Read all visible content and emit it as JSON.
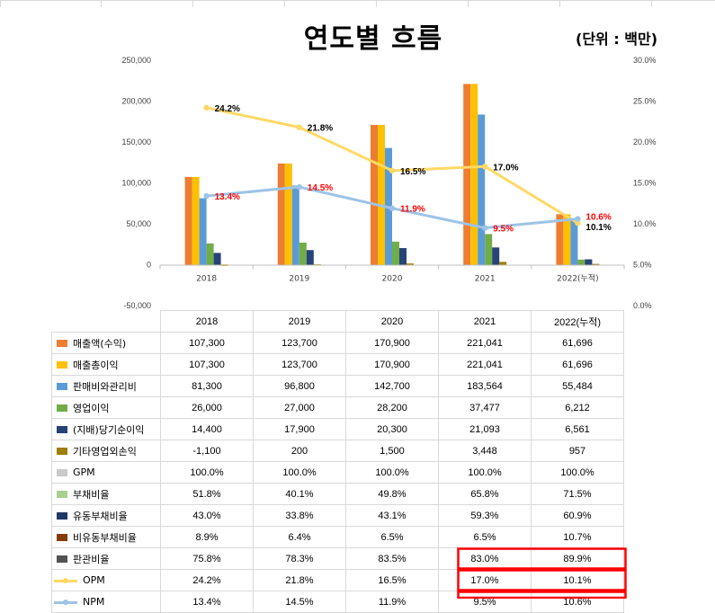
{
  "title": "연도별 흐름",
  "unit": "(단위 : 백만)",
  "chart_data": {
    "type": "bar",
    "categories": [
      "2018",
      "2019",
      "2020",
      "2021",
      "2022(누적)"
    ],
    "y_left": {
      "min": -50000,
      "max": 250000,
      "ticks": [
        "-50,000",
        "0",
        "50,000",
        "100,000",
        "150,000",
        "200,000",
        "250,000"
      ]
    },
    "y_right": {
      "min": 0.0,
      "max": 30.0,
      "ticks": [
        "0.0%",
        "5.0%",
        "10.0%",
        "15.0%",
        "20.0%",
        "25.0%",
        "30.0%"
      ]
    },
    "series": [
      {
        "name": "매출액(수익)",
        "kind": "bar",
        "color": "#ed7d31",
        "values": [
          107300,
          123700,
          170900,
          221041,
          61696
        ],
        "display": [
          "107,300",
          "123,700",
          "170,900",
          "221,041",
          "61,696"
        ]
      },
      {
        "name": "매출총이익",
        "kind": "bar",
        "color": "#ffc000",
        "values": [
          107300,
          123700,
          170900,
          221041,
          61696
        ],
        "display": [
          "107,300",
          "123,700",
          "170,900",
          "221,041",
          "61,696"
        ]
      },
      {
        "name": "판매비와관리비",
        "kind": "bar",
        "color": "#5b9bd5",
        "values": [
          81300,
          96800,
          142700,
          183564,
          55484
        ],
        "display": [
          "81,300",
          "96,800",
          "142,700",
          "183,564",
          "55,484"
        ]
      },
      {
        "name": "영업이익",
        "kind": "bar",
        "color": "#70ad47",
        "values": [
          26000,
          27000,
          28200,
          37477,
          6212
        ],
        "display": [
          "26,000",
          "27,000",
          "28,200",
          "37,477",
          "6,212"
        ]
      },
      {
        "name": "(지배)당기순이익",
        "kind": "bar",
        "color": "#264478",
        "values": [
          14400,
          17900,
          20300,
          21093,
          6561
        ],
        "display": [
          "14,400",
          "17,900",
          "20,300",
          "21,093",
          "6,561"
        ]
      },
      {
        "name": "기타영업외손익",
        "kind": "bar",
        "color": "#9e7e00",
        "values": [
          -1100,
          200,
          1500,
          3448,
          957
        ],
        "display": [
          "-1,100",
          "200",
          "1,500",
          "3,448",
          "957"
        ]
      },
      {
        "name": "GPM",
        "kind": "none",
        "color": "#c9c9c9",
        "values": [
          100.0,
          100.0,
          100.0,
          100.0,
          100.0
        ],
        "display": [
          "100.0%",
          "100.0%",
          "100.0%",
          "100.0%",
          "100.0%"
        ]
      },
      {
        "name": "부채비율",
        "kind": "none",
        "color": "#a9d18e",
        "values": [
          51.8,
          40.1,
          49.8,
          65.8,
          71.5
        ],
        "display": [
          "51.8%",
          "40.1%",
          "49.8%",
          "65.8%",
          "71.5%"
        ]
      },
      {
        "name": "유동부채비율",
        "kind": "none",
        "color": "#203864",
        "values": [
          43.0,
          33.8,
          43.1,
          59.3,
          60.9
        ],
        "display": [
          "43.0%",
          "33.8%",
          "43.1%",
          "59.3%",
          "60.9%"
        ]
      },
      {
        "name": "비유동부채비율",
        "kind": "none",
        "color": "#843c0c",
        "values": [
          8.9,
          6.4,
          6.5,
          6.5,
          10.7
        ],
        "display": [
          "8.9%",
          "6.4%",
          "6.5%",
          "6.5%",
          "10.7%"
        ]
      },
      {
        "name": "판관비율",
        "kind": "none",
        "color": "#525252",
        "values": [
          75.8,
          78.3,
          83.5,
          83.0,
          89.9
        ],
        "display": [
          "75.8%",
          "78.3%",
          "83.5%",
          "83.0%",
          "89.9%"
        ]
      },
      {
        "name": "OPM",
        "kind": "line",
        "color": "#ffd966",
        "label_color": "#000000",
        "values": [
          24.2,
          21.8,
          16.5,
          17.0,
          10.1
        ],
        "display": [
          "24.2%",
          "21.8%",
          "16.5%",
          "17.0%",
          "10.1%"
        ]
      },
      {
        "name": "NPM",
        "kind": "line",
        "color": "#9dc3e6",
        "label_color": "#ff0000",
        "values": [
          13.4,
          14.5,
          11.9,
          9.5,
          10.6
        ],
        "display": [
          "13.4%",
          "14.5%",
          "11.9%",
          "9.5%",
          "10.6%"
        ]
      }
    ],
    "highlighted_cells": [
      {
        "series": "판관비율",
        "categories": [
          "2021",
          "2022(누적)"
        ]
      },
      {
        "series": "OPM",
        "categories": [
          "2021",
          "2022(누적)"
        ]
      },
      {
        "series": "NPM",
        "categories": [
          "2021",
          "2022(누적)"
        ]
      }
    ],
    "highlight_color": "#ff0000"
  }
}
